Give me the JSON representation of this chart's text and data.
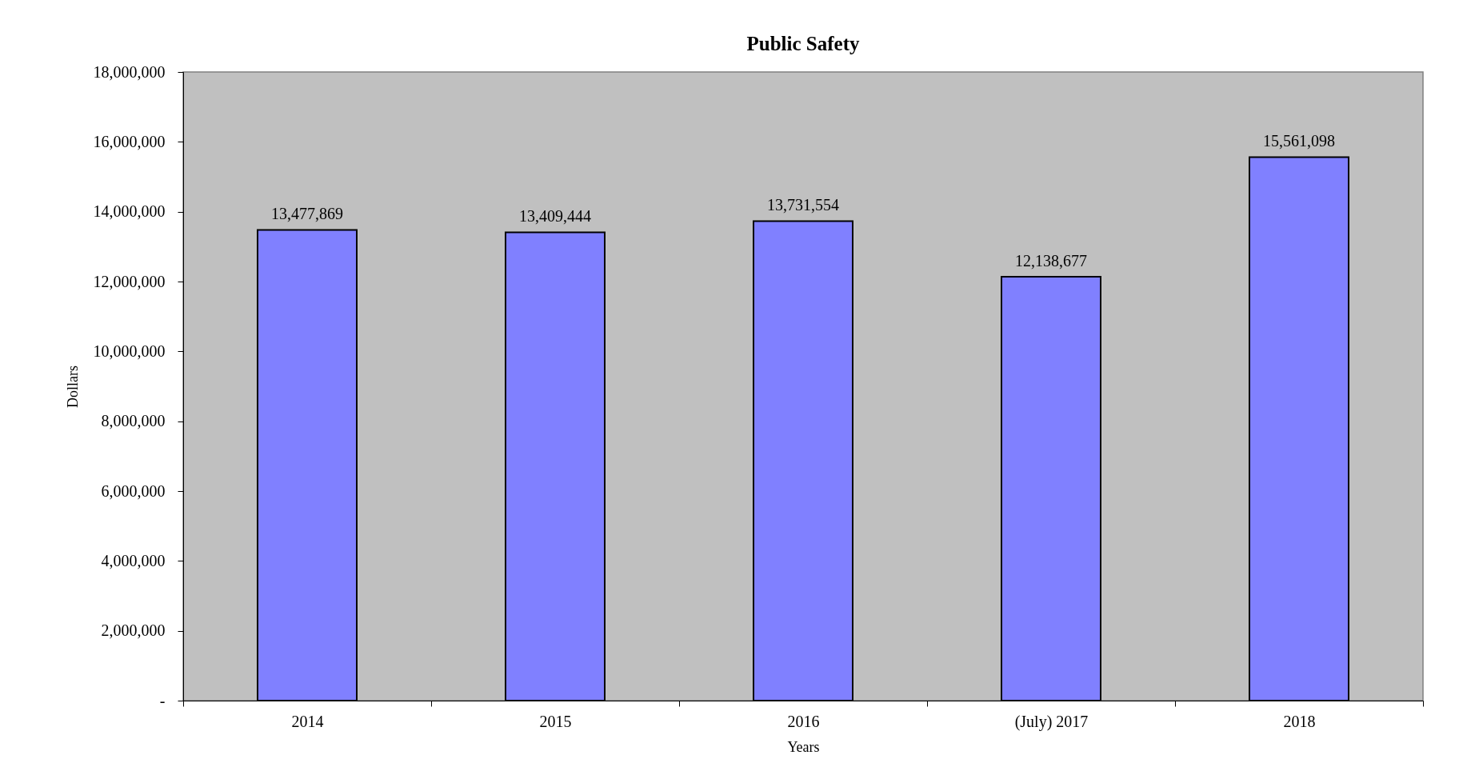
{
  "chart_data": {
    "type": "bar",
    "title": "Public Safety",
    "xlabel": "Years",
    "ylabel": "Dollars",
    "categories": [
      "2014",
      "2015",
      "2016",
      "(July) 2017",
      "2018"
    ],
    "values": [
      13477869,
      13409444,
      13731554,
      12138677,
      15561098
    ],
    "color": "#8080ff",
    "value_labels": [
      "13,477,869",
      "13,409,444",
      "13,731,554",
      "12,138,677",
      "15,561,098"
    ],
    "ylim": [
      0,
      18000000
    ],
    "yticks": [
      {
        "value": 0,
        "label": "-"
      },
      {
        "value": 2000000,
        "label": "2,000,000"
      },
      {
        "value": 4000000,
        "label": "4,000,000"
      },
      {
        "value": 6000000,
        "label": "6,000,000"
      },
      {
        "value": 8000000,
        "label": "8,000,000"
      },
      {
        "value": 10000000,
        "label": "10,000,000"
      },
      {
        "value": 12000000,
        "label": "12,000,000"
      },
      {
        "value": 14000000,
        "label": "14,000,000"
      },
      {
        "value": 16000000,
        "label": "16,000,000"
      },
      {
        "value": 18000000,
        "label": "18,000,000"
      }
    ],
    "grid": false
  }
}
